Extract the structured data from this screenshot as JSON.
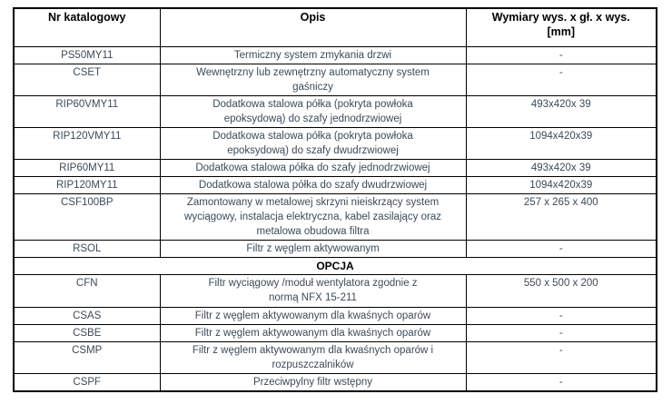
{
  "table": {
    "headers": {
      "code": "Nr katalogowy",
      "desc": "Opis",
      "dim": "Wymiary wys. x gł. x wys.\n[mm]"
    },
    "section_label": "OPCJA",
    "rows": [
      {
        "code": "PS50MY11",
        "desc": "Termiczny system zmykania drzwi",
        "dim": "-"
      },
      {
        "code": "CSET",
        "desc": "Wewnętrzny lub zewnętrzny automatyczny system\ngaśniczy",
        "dim": "-"
      },
      {
        "code": "RIP60VMY11",
        "desc": "Dodatkowa stalowa półka (pokryta powłoka\nepoksydową) do szafy jednodrzwiowej",
        "dim": "493x420x 39"
      },
      {
        "code": "RIP120VMY11",
        "desc": "Dodatkowa stalowa półka (pokryta powłoka\nepoksydową) do szafy dwudrzwiowej",
        "dim": "1094x420x39"
      },
      {
        "code": "RIP60MY11",
        "desc": "Dodatkowa stalowa półka do szafy jednodrzwiowej",
        "dim": "493x420x 39"
      },
      {
        "code": "RIP120MY11",
        "desc": "Dodatkowa stalowa półka do szafy dwudrzwiowej",
        "dim": "1094x420x39"
      },
      {
        "code": "CSF100BP",
        "desc": "Zamontowany w metalowej skrzyni nieiskrzący system\nwyciągowy, instalacja elektryczna, kabel zasilający oraz\nmetalowa obudowa filtra",
        "dim": "257 x 265 x 400"
      },
      {
        "code": "RSOL",
        "desc": "Filtr z węglem aktywowanym",
        "dim": "-"
      },
      {
        "code": "CFN",
        "desc": "Filtr wyciągowy /moduł wentylatora zgodnie z\nnormą NFX 15-211",
        "dim": "550 x 500 x 200"
      },
      {
        "code": "CSAS",
        "desc": "Filtr z węglem aktywowanym dla kwaśnych oparów",
        "dim": "-"
      },
      {
        "code": "CSBE",
        "desc": "Filtr z węglem aktywowanym dla kwaśnych oparów",
        "dim": "-"
      },
      {
        "code": "CSMP",
        "desc": "Filtr z węglem aktywowanym dla kwaśnych oparów i\nrozpuszczalników",
        "dim": "-"
      },
      {
        "code": "CSPF",
        "desc": "Przeciwpylny filtr wstępny",
        "dim": "-"
      }
    ],
    "colors": {
      "border": "#000000",
      "header_text": "#000000",
      "body_text": "#3d4a58"
    }
  }
}
